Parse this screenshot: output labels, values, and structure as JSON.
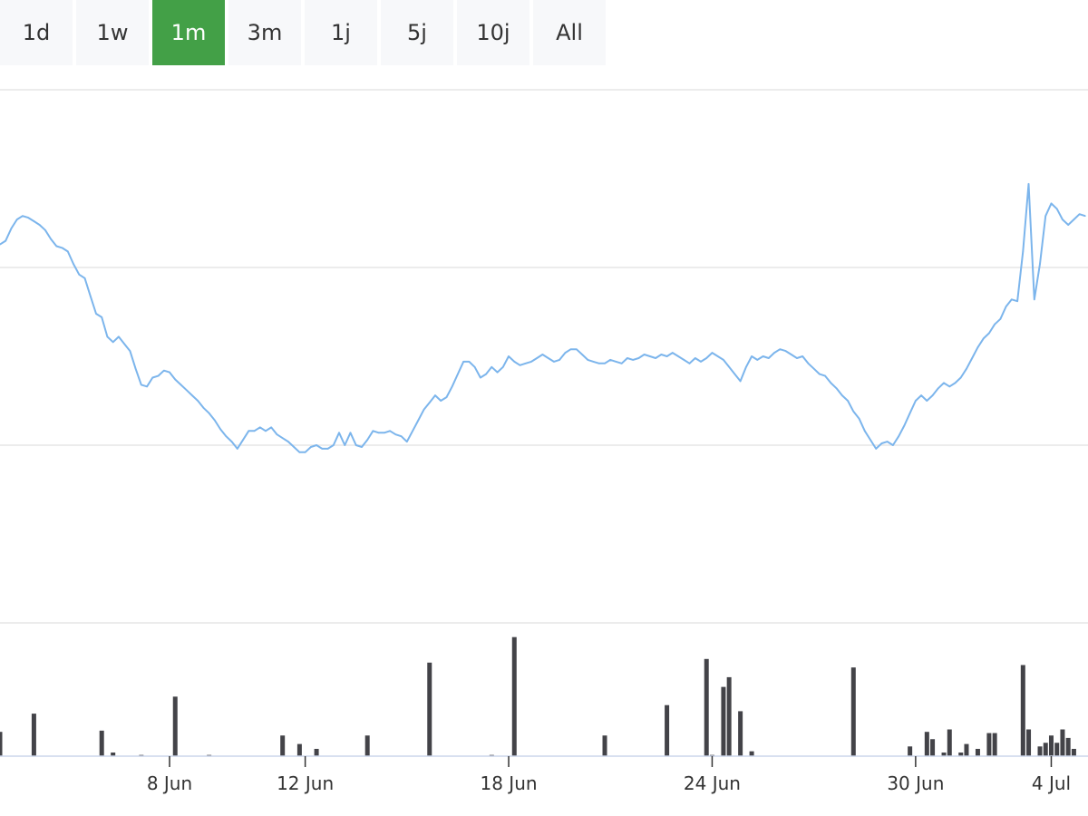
{
  "range_selector": {
    "buttons": [
      {
        "label": "1d"
      },
      {
        "label": "1w"
      },
      {
        "label": "1m"
      },
      {
        "label": "3m"
      },
      {
        "label": "1j"
      },
      {
        "label": "5j"
      },
      {
        "label": "10j"
      },
      {
        "label": "All"
      }
    ],
    "selected": "1m"
  },
  "colors": {
    "price_line": "#7cb5ec",
    "volume_bar": "#434348",
    "selected_button": "#43a047",
    "grid": "#e6e6e6"
  },
  "chart_data": {
    "type": "line",
    "title": "",
    "xlabel": "",
    "ylabel": "",
    "grid": true,
    "legend": "none",
    "x_range": [
      "2020-06-03T00:00",
      "2020-07-05T02:00"
    ],
    "y_range": [
      0,
      3
    ],
    "x_ticks": [
      {
        "x": "2020-06-08",
        "label": "8 Jun"
      },
      {
        "x": "2020-06-12",
        "label": "12 Jun"
      },
      {
        "x": "2020-06-18",
        "label": "18 Jun"
      },
      {
        "x": "2020-06-24",
        "label": "24 Jun"
      },
      {
        "x": "2020-06-30",
        "label": "30 Jun"
      },
      {
        "x": "2020-07-04",
        "label": "4 Jul"
      }
    ],
    "series": [
      {
        "kind": "line",
        "x": [
          "2020-06-03T00:00",
          "2020-06-03T04:00",
          "2020-06-03T08:00",
          "2020-06-03T12:00",
          "2020-06-03T16:00",
          "2020-06-03T20:00",
          "2020-06-04T00:00",
          "2020-06-04T04:00",
          "2020-06-04T08:00",
          "2020-06-04T12:00",
          "2020-06-04T16:00",
          "2020-06-04T20:00",
          "2020-06-05T00:00",
          "2020-06-05T04:00",
          "2020-06-05T08:00",
          "2020-06-05T12:00",
          "2020-06-05T16:00",
          "2020-06-05T20:00",
          "2020-06-06T00:00",
          "2020-06-06T04:00",
          "2020-06-06T08:00",
          "2020-06-06T12:00",
          "2020-06-06T16:00",
          "2020-06-06T20:00",
          "2020-06-07T00:00",
          "2020-06-07T04:00",
          "2020-06-07T08:00",
          "2020-06-07T12:00",
          "2020-06-07T16:00",
          "2020-06-07T20:00",
          "2020-06-08T00:00",
          "2020-06-08T04:00",
          "2020-06-08T08:00",
          "2020-06-08T12:00",
          "2020-06-08T16:00",
          "2020-06-08T20:00",
          "2020-06-09T00:00",
          "2020-06-09T04:00",
          "2020-06-09T08:00",
          "2020-06-09T12:00",
          "2020-06-09T16:00",
          "2020-06-09T20:00",
          "2020-06-10T00:00",
          "2020-06-10T04:00",
          "2020-06-10T08:00",
          "2020-06-10T12:00",
          "2020-06-10T16:00",
          "2020-06-10T20:00",
          "2020-06-11T00:00",
          "2020-06-11T04:00",
          "2020-06-11T08:00",
          "2020-06-11T12:00",
          "2020-06-11T16:00",
          "2020-06-11T20:00",
          "2020-06-12T00:00",
          "2020-06-12T04:00",
          "2020-06-12T08:00",
          "2020-06-12T12:00",
          "2020-06-12T16:00",
          "2020-06-12T20:00",
          "2020-06-13T00:00",
          "2020-06-13T04:00",
          "2020-06-13T08:00",
          "2020-06-13T12:00",
          "2020-06-13T16:00",
          "2020-06-13T20:00",
          "2020-06-14T00:00",
          "2020-06-14T04:00",
          "2020-06-14T08:00",
          "2020-06-14T12:00",
          "2020-06-14T16:00",
          "2020-06-14T20:00",
          "2020-06-15T00:00",
          "2020-06-15T04:00",
          "2020-06-15T08:00",
          "2020-06-15T12:00",
          "2020-06-15T16:00",
          "2020-06-15T20:00",
          "2020-06-16T00:00",
          "2020-06-16T04:00",
          "2020-06-16T08:00",
          "2020-06-16T12:00",
          "2020-06-16T16:00",
          "2020-06-16T20:00",
          "2020-06-17T00:00",
          "2020-06-17T04:00",
          "2020-06-17T08:00",
          "2020-06-17T12:00",
          "2020-06-17T16:00",
          "2020-06-17T20:00",
          "2020-06-18T00:00",
          "2020-06-18T04:00",
          "2020-06-18T08:00",
          "2020-06-18T12:00",
          "2020-06-18T16:00",
          "2020-06-18T20:00",
          "2020-06-19T00:00",
          "2020-06-19T04:00",
          "2020-06-19T08:00",
          "2020-06-19T12:00",
          "2020-06-19T16:00",
          "2020-06-19T20:00",
          "2020-06-20T00:00",
          "2020-06-20T04:00",
          "2020-06-20T08:00",
          "2020-06-20T12:00",
          "2020-06-20T16:00",
          "2020-06-20T20:00",
          "2020-06-21T00:00",
          "2020-06-21T04:00",
          "2020-06-21T08:00",
          "2020-06-21T12:00",
          "2020-06-21T16:00",
          "2020-06-21T20:00",
          "2020-06-22T00:00",
          "2020-06-22T04:00",
          "2020-06-22T08:00",
          "2020-06-22T12:00",
          "2020-06-22T16:00",
          "2020-06-22T20:00",
          "2020-06-23T00:00",
          "2020-06-23T04:00",
          "2020-06-23T08:00",
          "2020-06-23T12:00",
          "2020-06-23T16:00",
          "2020-06-23T20:00",
          "2020-06-24T00:00",
          "2020-06-24T04:00",
          "2020-06-24T08:00",
          "2020-06-24T12:00",
          "2020-06-24T16:00",
          "2020-06-24T20:00",
          "2020-06-25T00:00",
          "2020-06-25T04:00",
          "2020-06-25T08:00",
          "2020-06-25T12:00",
          "2020-06-25T16:00",
          "2020-06-25T20:00",
          "2020-06-26T00:00",
          "2020-06-26T04:00",
          "2020-06-26T08:00",
          "2020-06-26T12:00",
          "2020-06-26T16:00",
          "2020-06-26T20:00",
          "2020-06-27T00:00",
          "2020-06-27T04:00",
          "2020-06-27T08:00",
          "2020-06-27T12:00",
          "2020-06-27T16:00",
          "2020-06-27T20:00",
          "2020-06-28T00:00",
          "2020-06-28T04:00",
          "2020-06-28T08:00",
          "2020-06-28T12:00",
          "2020-06-28T16:00",
          "2020-06-28T20:00",
          "2020-06-29T00:00",
          "2020-06-29T04:00",
          "2020-06-29T08:00",
          "2020-06-29T12:00",
          "2020-06-29T16:00",
          "2020-06-29T20:00",
          "2020-06-30T00:00",
          "2020-06-30T04:00",
          "2020-06-30T08:00",
          "2020-06-30T12:00",
          "2020-06-30T16:00",
          "2020-06-30T20:00",
          "2020-07-01T00:00",
          "2020-07-01T04:00",
          "2020-07-01T08:00",
          "2020-07-01T12:00",
          "2020-07-01T16:00",
          "2020-07-01T20:00",
          "2020-07-02T00:00",
          "2020-07-02T04:00",
          "2020-07-02T08:00",
          "2020-07-02T12:00",
          "2020-07-02T16:00",
          "2020-07-02T20:00",
          "2020-07-03T00:00",
          "2020-07-03T04:00",
          "2020-07-03T08:00",
          "2020-07-03T12:00",
          "2020-07-03T16:00",
          "2020-07-03T20:00",
          "2020-07-04T00:00",
          "2020-07-04T04:00",
          "2020-07-04T08:00",
          "2020-07-04T12:00",
          "2020-07-04T16:00",
          "2020-07-04T20:00",
          "2020-07-05T00:00"
        ],
        "values": [
          2.13,
          2.15,
          2.22,
          2.27,
          2.29,
          2.28,
          2.26,
          2.24,
          2.21,
          2.16,
          2.12,
          2.11,
          2.09,
          2.02,
          1.96,
          1.94,
          1.84,
          1.74,
          1.72,
          1.61,
          1.58,
          1.61,
          1.57,
          1.53,
          1.43,
          1.34,
          1.33,
          1.38,
          1.39,
          1.42,
          1.41,
          1.37,
          1.34,
          1.31,
          1.28,
          1.25,
          1.21,
          1.18,
          1.14,
          1.09,
          1.05,
          1.02,
          0.98,
          1.03,
          1.08,
          1.08,
          1.1,
          1.08,
          1.1,
          1.06,
          1.04,
          1.02,
          0.99,
          0.96,
          0.96,
          0.99,
          1.0,
          0.98,
          0.98,
          1.0,
          1.07,
          1.0,
          1.07,
          1.0,
          0.99,
          1.03,
          1.08,
          1.07,
          1.07,
          1.08,
          1.06,
          1.05,
          1.02,
          1.08,
          1.14,
          1.2,
          1.24,
          1.28,
          1.25,
          1.27,
          1.33,
          1.4,
          1.47,
          1.47,
          1.44,
          1.38,
          1.4,
          1.44,
          1.41,
          1.44,
          1.5,
          1.47,
          1.45,
          1.46,
          1.47,
          1.49,
          1.51,
          1.49,
          1.47,
          1.48,
          1.52,
          1.54,
          1.54,
          1.51,
          1.48,
          1.47,
          1.46,
          1.46,
          1.48,
          1.47,
          1.46,
          1.49,
          1.48,
          1.49,
          1.51,
          1.5,
          1.49,
          1.51,
          1.5,
          1.52,
          1.5,
          1.48,
          1.46,
          1.49,
          1.47,
          1.49,
          1.52,
          1.5,
          1.48,
          1.44,
          1.4,
          1.36,
          1.44,
          1.5,
          1.48,
          1.5,
          1.49,
          1.52,
          1.54,
          1.53,
          1.51,
          1.49,
          1.5,
          1.46,
          1.43,
          1.4,
          1.39,
          1.35,
          1.32,
          1.28,
          1.25,
          1.19,
          1.15,
          1.08,
          1.03,
          0.98,
          1.01,
          1.02,
          1.0,
          1.05,
          1.11,
          1.18,
          1.25,
          1.28,
          1.25,
          1.28,
          1.32,
          1.35,
          1.33,
          1.35,
          1.38,
          1.43,
          1.49,
          1.55,
          1.6,
          1.63,
          1.68,
          1.71,
          1.78,
          1.82,
          1.81,
          2.09,
          2.47,
          1.82,
          2.02,
          2.29,
          2.36,
          2.33,
          2.27,
          2.24,
          2.27,
          2.3,
          2.29
        ]
      },
      {
        "kind": "column",
        "y_range": [
          0,
          100
        ],
        "x": [
          "2020-06-03T00:00",
          "2020-06-04T00:00",
          "2020-06-06T00:00",
          "2020-06-06T08:00",
          "2020-06-07T04:00",
          "2020-06-08T04:00",
          "2020-06-09T04:00",
          "2020-06-11T08:00",
          "2020-06-11T20:00",
          "2020-06-12T08:00",
          "2020-06-13T20:00",
          "2020-06-15T16:00",
          "2020-06-17T12:00",
          "2020-06-18T04:00",
          "2020-06-20T20:00",
          "2020-06-22T16:00",
          "2020-06-23T20:00",
          "2020-06-24T00:00",
          "2020-06-24T08:00",
          "2020-06-24T12:00",
          "2020-06-24T20:00",
          "2020-06-25T04:00",
          "2020-06-28T04:00",
          "2020-06-29T20:00",
          "2020-06-30T08:00",
          "2020-06-30T12:00",
          "2020-06-30T20:00",
          "2020-07-01T00:00",
          "2020-07-01T08:00",
          "2020-07-01T12:00",
          "2020-07-01T20:00",
          "2020-07-02T04:00",
          "2020-07-02T08:00",
          "2020-07-03T04:00",
          "2020-07-03T08:00",
          "2020-07-03T16:00",
          "2020-07-03T20:00",
          "2020-07-04T00:00",
          "2020-07-04T04:00",
          "2020-07-04T08:00",
          "2020-07-04T12:00",
          "2020-07-04T16:00"
        ],
        "values": [
          20,
          35,
          21,
          3,
          1,
          49,
          1,
          17,
          10,
          6,
          17,
          77,
          1,
          98,
          17,
          42,
          80,
          1,
          57,
          65,
          37,
          4,
          73,
          8,
          20,
          14,
          3,
          22,
          3,
          10,
          6,
          19,
          19,
          75,
          22,
          8,
          11,
          17,
          11,
          22,
          15,
          6
        ]
      }
    ]
  }
}
